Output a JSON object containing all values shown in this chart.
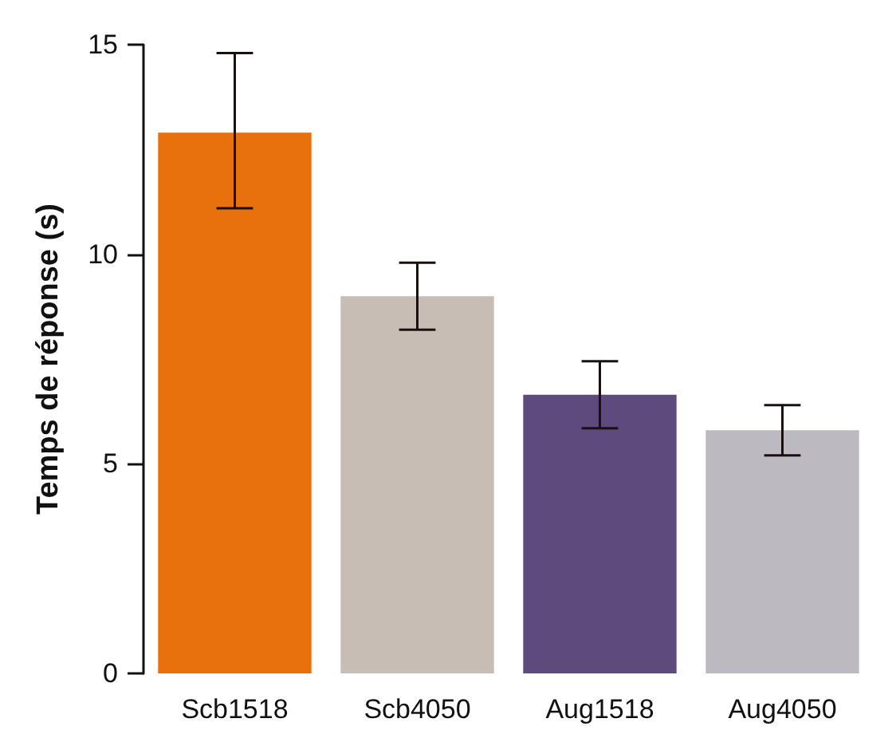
{
  "chart_data": {
    "type": "bar",
    "ylabel": "Temps de réponse (s)",
    "categories": [
      "Scb1518",
      "Scb4050",
      "Aug1518",
      "Aug4050"
    ],
    "values": [
      12.9,
      9.0,
      6.65,
      5.8
    ],
    "colors": [
      "#e8700d",
      "#c8bdb4",
      "#5e4a7d",
      "#bcbac0"
    ],
    "errors": [
      [
        11.1,
        14.8
      ],
      [
        8.2,
        9.8
      ],
      [
        5.85,
        7.45
      ],
      [
        5.2,
        6.4
      ]
    ],
    "ylim": [
      0,
      15
    ],
    "yticks": [
      0,
      5,
      10,
      15
    ],
    "grid": false
  }
}
